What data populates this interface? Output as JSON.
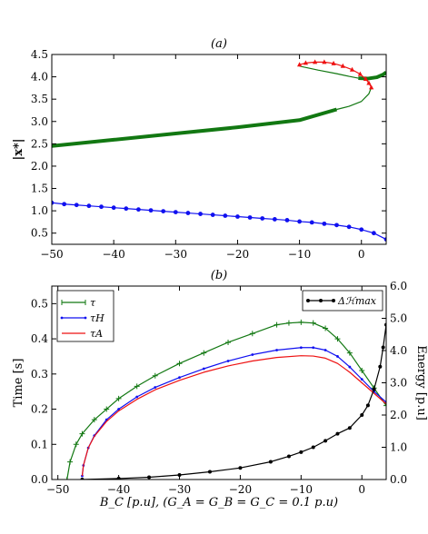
{
  "colors": {
    "green": "#127812",
    "blue": "#1010f0",
    "red": "#ee1010",
    "black": "#000000"
  },
  "chart_data": [
    {
      "type": "line",
      "title": "(a)",
      "xlabel": "",
      "ylabel": "|x*|",
      "xlim": [
        -50,
        4
      ],
      "ylim": [
        0.25,
        4.5
      ],
      "xticks": [
        -50,
        -40,
        -30,
        -20,
        -10,
        0
      ],
      "yticks": [
        0.5,
        1.0,
        1.5,
        2.0,
        2.5,
        3.0,
        3.5,
        4.0,
        4.5
      ],
      "xtick_labels": [
        "−50",
        "−40",
        "−30",
        "−20",
        "−10",
        "0"
      ],
      "ytick_labels": [
        "0.5",
        "1.0",
        "1.5",
        "2.0",
        "2.5",
        "3.0",
        "3.5",
        "4.0",
        "4.5"
      ],
      "series": [
        {
          "color": "green",
          "style": "thick",
          "x": [
            -50,
            -40,
            -30,
            -20,
            -10,
            -4
          ],
          "y": [
            2.45,
            2.59,
            2.73,
            2.87,
            3.03,
            3.27
          ]
        },
        {
          "color": "green",
          "style": "thin",
          "x": [
            -4,
            -2,
            0,
            1.2,
            1.6
          ],
          "y": [
            3.27,
            3.34,
            3.45,
            3.62,
            3.76
          ]
        },
        {
          "color": "green",
          "style": "thin",
          "x": [
            -10,
            -7,
            -4,
            -2,
            -0.5
          ],
          "y": [
            4.24,
            4.15,
            4.07,
            4.01,
            3.97
          ]
        },
        {
          "color": "green",
          "style": "thick",
          "x": [
            -0.5,
            1,
            2.5,
            3.5,
            4
          ],
          "y": [
            3.97,
            3.96,
            3.99,
            4.05,
            4.1
          ]
        },
        {
          "color": "red",
          "style": "triangles",
          "x": [
            -10,
            -9,
            -7.5,
            -6,
            -4.5,
            -3,
            -1.5,
            -0.2,
            0.7,
            1.2,
            1.6
          ],
          "y": [
            4.27,
            4.31,
            4.33,
            4.33,
            4.3,
            4.24,
            4.16,
            4.06,
            3.95,
            3.86,
            3.76
          ]
        },
        {
          "color": "blue",
          "style": "dots",
          "x": [
            -50,
            -48,
            -46,
            -44,
            -42,
            -40,
            -38,
            -36,
            -34,
            -32,
            -30,
            -28,
            -26,
            -24,
            -22,
            -20,
            -18,
            -16,
            -14,
            -12,
            -10,
            -8,
            -6,
            -4,
            -2,
            0,
            2,
            4
          ],
          "y": [
            1.18,
            1.15,
            1.13,
            1.11,
            1.09,
            1.07,
            1.05,
            1.03,
            1.01,
            0.99,
            0.97,
            0.95,
            0.93,
            0.91,
            0.89,
            0.87,
            0.85,
            0.83,
            0.81,
            0.79,
            0.76,
            0.74,
            0.71,
            0.68,
            0.64,
            0.58,
            0.5,
            0.36
          ]
        }
      ]
    },
    {
      "type": "line",
      "title": "(b)",
      "xlabel": "B_C [p.u], (G_A = G_B = G_C = 0.1 p.u)",
      "ylabel": "Time [s]",
      "ylabel_right": "Energy [p.u]",
      "xlim": [
        -51,
        4
      ],
      "ylim": [
        0,
        0.55
      ],
      "ylim_right": [
        0,
        6.0
      ],
      "xticks": [
        -50,
        -40,
        -30,
        -20,
        -10,
        0
      ],
      "yticks": [
        0.0,
        0.1,
        0.2,
        0.3,
        0.4,
        0.5
      ],
      "yticks_right": [
        0.0,
        1.0,
        2.0,
        3.0,
        4.0,
        5.0,
        6.0
      ],
      "xtick_labels": [
        "−50",
        "−40",
        "−30",
        "−20",
        "−10",
        "0"
      ],
      "ytick_labels": [
        "0.0",
        "0.1",
        "0.2",
        "0.3",
        "0.4",
        "0.5"
      ],
      "ytick_labels_right": [
        "0.0",
        "1.0",
        "2.0",
        "3.0",
        "4.0",
        "5.0",
        "6.0"
      ],
      "legend_left": {
        "placement": "top-left",
        "entries": [
          {
            "label": "τ",
            "color": "green"
          },
          {
            "label": "τH",
            "color": "blue"
          },
          {
            "label": "τA",
            "color": "red"
          }
        ]
      },
      "legend_right": {
        "placement": "top-right",
        "entries": [
          {
            "label": "Δℋmax",
            "color": "black"
          }
        ]
      },
      "series": [
        {
          "label": "τ",
          "axis": "left",
          "color": "green",
          "marker": "plus",
          "x": [
            -48.5,
            -48,
            -47,
            -46,
            -44,
            -42,
            -40,
            -37,
            -34,
            -30,
            -26,
            -22,
            -18,
            -14,
            -12,
            -10,
            -8,
            -6,
            -4,
            -2,
            0,
            2,
            4
          ],
          "y": [
            0.0,
            0.05,
            0.1,
            0.13,
            0.17,
            0.2,
            0.23,
            0.265,
            0.295,
            0.33,
            0.36,
            0.39,
            0.415,
            0.44,
            0.445,
            0.447,
            0.445,
            0.43,
            0.4,
            0.36,
            0.31,
            0.26,
            0.21
          ]
        },
        {
          "label": "τH",
          "axis": "left",
          "color": "blue",
          "marker": "dot",
          "x": [
            -46,
            -45.8,
            -45,
            -44,
            -42,
            -40,
            -37,
            -34,
            -30,
            -26,
            -22,
            -18,
            -14,
            -10,
            -8,
            -6,
            -4,
            -2,
            0,
            2,
            4
          ],
          "y": [
            0.01,
            0.04,
            0.09,
            0.125,
            0.17,
            0.2,
            0.235,
            0.262,
            0.29,
            0.315,
            0.337,
            0.355,
            0.368,
            0.375,
            0.375,
            0.368,
            0.35,
            0.32,
            0.285,
            0.25,
            0.22
          ]
        },
        {
          "label": "τA",
          "axis": "left",
          "color": "red",
          "marker": "none",
          "x": [
            -46,
            -45.8,
            -45,
            -44,
            -42,
            -40,
            -37,
            -34,
            -30,
            -26,
            -22,
            -18,
            -14,
            -10,
            -8,
            -6,
            -4,
            -2,
            0,
            2,
            4
          ],
          "y": [
            0.01,
            0.04,
            0.09,
            0.123,
            0.165,
            0.195,
            0.228,
            0.255,
            0.282,
            0.305,
            0.323,
            0.337,
            0.347,
            0.352,
            0.351,
            0.345,
            0.33,
            0.305,
            0.275,
            0.245,
            0.215
          ]
        },
        {
          "label": "Δℋmax",
          "axis": "right",
          "color": "black",
          "marker": "dot",
          "x": [
            -46,
            -40,
            -35,
            -30,
            -25,
            -20,
            -15,
            -12,
            -10,
            -8,
            -6,
            -4,
            -2,
            0,
            1,
            2,
            3,
            3.5,
            4
          ],
          "y": [
            0.0,
            0.03,
            0.07,
            0.14,
            0.24,
            0.36,
            0.55,
            0.72,
            0.85,
            1.0,
            1.2,
            1.42,
            1.6,
            2.0,
            2.3,
            2.8,
            3.5,
            4.1,
            4.8
          ]
        }
      ]
    }
  ]
}
